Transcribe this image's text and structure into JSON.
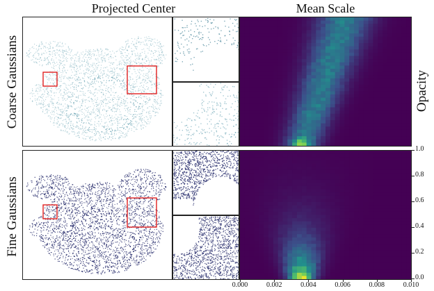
{
  "titles": {
    "projected_center": "Projected Center",
    "mean_scale": "Mean Scale"
  },
  "row_labels": {
    "coarse": "Coarse Gaussians",
    "fine": "Fine Gaussians"
  },
  "axis_labels": {
    "opacity": "Opacity"
  },
  "colors": {
    "bbox": "#e02020",
    "heat_background": "#440154",
    "point_light": "#6fa7b6",
    "point_dark": "#2a2f6e"
  },
  "chart_data": [
    {
      "type": "heatmap",
      "panel": "coarse",
      "title": "",
      "xlabel": "",
      "ylabel": "",
      "x_ticks": [],
      "y_ticks": [],
      "xlim": [
        0.0,
        0.01
      ],
      "ylim": [
        0.0,
        1.0
      ],
      "colormap": "viridis"
    },
    {
      "type": "heatmap",
      "panel": "fine",
      "title": "",
      "xlabel": "",
      "ylabel": "",
      "x_ticks": [
        "0.000",
        "0.002",
        "0.004",
        "0.006",
        "0.008",
        "0.010"
      ],
      "y_ticks": [
        "0.0",
        "0.2",
        "0.4",
        "0.6",
        "0.8",
        "1.0"
      ],
      "xlim": [
        0.0,
        0.01
      ],
      "ylim": [
        0.0,
        1.0
      ],
      "colormap": "viridis"
    }
  ]
}
